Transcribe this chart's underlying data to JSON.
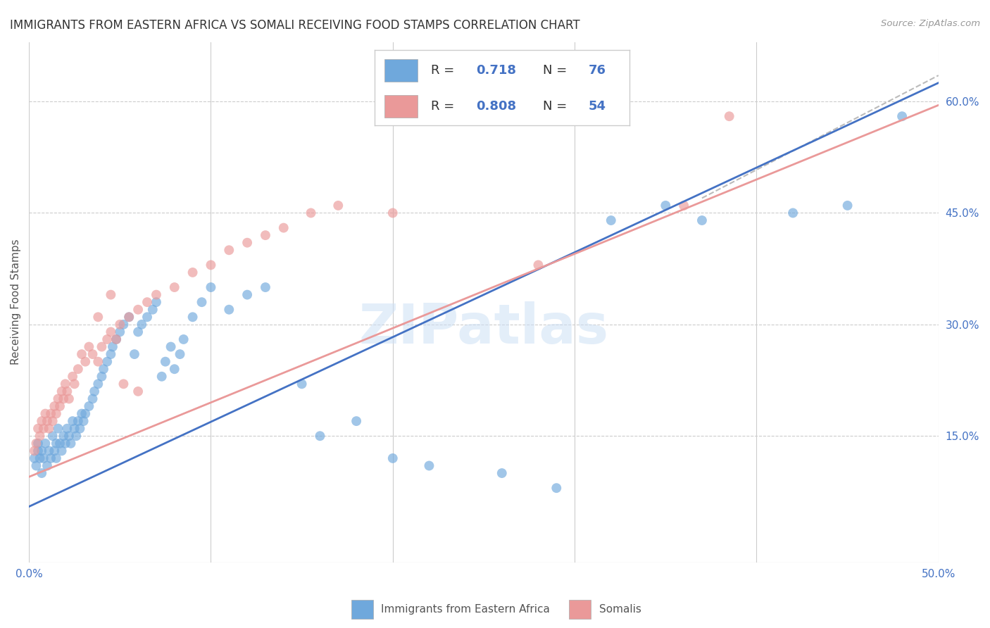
{
  "title": "IMMIGRANTS FROM EASTERN AFRICA VS SOMALI RECEIVING FOOD STAMPS CORRELATION CHART",
  "source": "Source: ZipAtlas.com",
  "ylabel": "Receiving Food Stamps",
  "xlim": [
    0.0,
    0.5
  ],
  "ylim": [
    -0.02,
    0.68
  ],
  "x_tick_positions": [
    0.0,
    0.1,
    0.2,
    0.3,
    0.4,
    0.5
  ],
  "x_tick_labels": [
    "0.0%",
    "",
    "",
    "",
    "",
    "50.0%"
  ],
  "y_ticks_right": [
    0.15,
    0.3,
    0.45,
    0.6
  ],
  "y_tick_labels_right": [
    "15.0%",
    "30.0%",
    "45.0%",
    "60.0%"
  ],
  "bottom_legend1": "Immigrants from Eastern Africa",
  "bottom_legend2": "Somalis",
  "color_blue": "#6fa8dc",
  "color_pink": "#ea9999",
  "color_blue_text": "#4472c4",
  "color_dark": "#333333",
  "color_grid": "#cccccc",
  "blue_scatter_x": [
    0.003,
    0.004,
    0.005,
    0.005,
    0.006,
    0.007,
    0.007,
    0.008,
    0.009,
    0.01,
    0.011,
    0.012,
    0.013,
    0.014,
    0.015,
    0.015,
    0.016,
    0.017,
    0.018,
    0.019,
    0.02,
    0.021,
    0.022,
    0.023,
    0.024,
    0.025,
    0.026,
    0.027,
    0.028,
    0.029,
    0.03,
    0.031,
    0.033,
    0.035,
    0.036,
    0.038,
    0.04,
    0.041,
    0.043,
    0.045,
    0.046,
    0.048,
    0.05,
    0.052,
    0.055,
    0.058,
    0.06,
    0.062,
    0.065,
    0.068,
    0.07,
    0.073,
    0.075,
    0.078,
    0.08,
    0.083,
    0.085,
    0.09,
    0.095,
    0.1,
    0.11,
    0.12,
    0.13,
    0.15,
    0.16,
    0.18,
    0.2,
    0.22,
    0.26,
    0.29,
    0.32,
    0.35,
    0.37,
    0.42,
    0.45,
    0.48
  ],
  "blue_scatter_y": [
    0.12,
    0.11,
    0.14,
    0.13,
    0.12,
    0.1,
    0.13,
    0.12,
    0.14,
    0.11,
    0.13,
    0.12,
    0.15,
    0.13,
    0.14,
    0.12,
    0.16,
    0.14,
    0.13,
    0.15,
    0.14,
    0.16,
    0.15,
    0.14,
    0.17,
    0.16,
    0.15,
    0.17,
    0.16,
    0.18,
    0.17,
    0.18,
    0.19,
    0.2,
    0.21,
    0.22,
    0.23,
    0.24,
    0.25,
    0.26,
    0.27,
    0.28,
    0.29,
    0.3,
    0.31,
    0.26,
    0.29,
    0.3,
    0.31,
    0.32,
    0.33,
    0.23,
    0.25,
    0.27,
    0.24,
    0.26,
    0.28,
    0.31,
    0.33,
    0.35,
    0.32,
    0.34,
    0.35,
    0.22,
    0.15,
    0.17,
    0.12,
    0.11,
    0.1,
    0.08,
    0.44,
    0.46,
    0.44,
    0.45,
    0.46,
    0.58
  ],
  "pink_scatter_x": [
    0.003,
    0.004,
    0.005,
    0.006,
    0.007,
    0.008,
    0.009,
    0.01,
    0.011,
    0.012,
    0.013,
    0.014,
    0.015,
    0.016,
    0.017,
    0.018,
    0.019,
    0.02,
    0.021,
    0.022,
    0.024,
    0.025,
    0.027,
    0.029,
    0.031,
    0.033,
    0.035,
    0.038,
    0.04,
    0.043,
    0.045,
    0.048,
    0.05,
    0.055,
    0.06,
    0.065,
    0.07,
    0.08,
    0.09,
    0.1,
    0.11,
    0.12,
    0.13,
    0.14,
    0.155,
    0.17,
    0.2,
    0.28,
    0.36,
    0.385,
    0.038,
    0.045,
    0.052,
    0.06
  ],
  "pink_scatter_y": [
    0.13,
    0.14,
    0.16,
    0.15,
    0.17,
    0.16,
    0.18,
    0.17,
    0.16,
    0.18,
    0.17,
    0.19,
    0.18,
    0.2,
    0.19,
    0.21,
    0.2,
    0.22,
    0.21,
    0.2,
    0.23,
    0.22,
    0.24,
    0.26,
    0.25,
    0.27,
    0.26,
    0.25,
    0.27,
    0.28,
    0.29,
    0.28,
    0.3,
    0.31,
    0.32,
    0.33,
    0.34,
    0.35,
    0.37,
    0.38,
    0.4,
    0.41,
    0.42,
    0.43,
    0.45,
    0.46,
    0.45,
    0.38,
    0.46,
    0.58,
    0.31,
    0.34,
    0.22,
    0.21
  ],
  "blue_line_x": [
    0.0,
    0.5
  ],
  "blue_line_y": [
    0.055,
    0.625
  ],
  "pink_line_x": [
    0.0,
    0.5
  ],
  "pink_line_y": [
    0.095,
    0.595
  ],
  "dashed_line_x": [
    0.37,
    0.5
  ],
  "dashed_line_y": [
    0.47,
    0.635
  ]
}
